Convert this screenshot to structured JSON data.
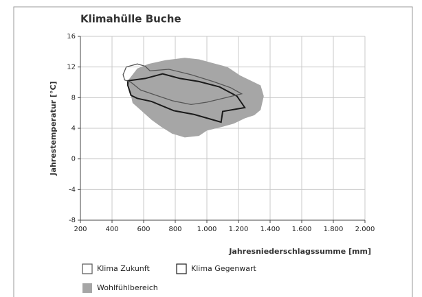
{
  "chart_data": {
    "type": "area",
    "title": "Klimahülle Buche",
    "x_label": "Jahresniederschlagssumme [mm]",
    "y_label": "Jahrestemperatur [°C]",
    "xlim": [
      200,
      2000
    ],
    "ylim": [
      -8,
      16
    ],
    "xticks": [
      200,
      400,
      600,
      800,
      {
        "value": 1000,
        "label": "1.000"
      },
      {
        "value": 1200,
        "label": "1.200"
      },
      {
        "value": 1400,
        "label": "1.400"
      },
      {
        "value": 1600,
        "label": "1.600"
      },
      {
        "value": 1800,
        "label": "1.800"
      },
      {
        "value": 2000,
        "label": "2.000"
      }
    ],
    "yticks": [
      -8,
      -4,
      0,
      4,
      8,
      12,
      16
    ],
    "grid": true,
    "series": [
      {
        "name": "Klima Zukunft",
        "color": "#555555",
        "style": "outline",
        "x": [
          470,
          490,
          560,
          610,
          640,
          760,
          900,
          1040,
          1150,
          1220,
          1120,
          1000,
          900,
          780,
          680,
          580,
          520,
          480
        ],
        "y": [
          11.0,
          12.0,
          12.4,
          12.1,
          11.5,
          11.7,
          11.0,
          10.1,
          9.3,
          8.5,
          8.0,
          7.4,
          7.1,
          7.6,
          8.3,
          9.0,
          10.0,
          10.3
        ]
      },
      {
        "name": "Klima Gegenwart",
        "color": "#1a1a1a",
        "style": "outline",
        "x": [
          500,
          610,
          720,
          830,
          950,
          1080,
          1190,
          1240,
          1100,
          1090,
          920,
          790,
          650,
          560,
          520,
          500
        ],
        "y": [
          10.2,
          10.5,
          11.1,
          10.5,
          10.1,
          9.4,
          8.2,
          6.7,
          6.2,
          4.8,
          5.8,
          6.3,
          7.5,
          7.9,
          8.3,
          9.6
        ]
      },
      {
        "name": "Wohlfühlbereich",
        "color": "#a6a6a6",
        "style": "filled",
        "x": [
          500,
          560,
          630,
          740,
          860,
          950,
          1040,
          1130,
          1210,
          1300,
          1340,
          1360,
          1340,
          1300,
          1240,
          1170,
          1100,
          1000,
          950,
          860,
          780,
          710,
          650,
          580,
          530
        ],
        "y": [
          10.2,
          11.8,
          12.4,
          12.9,
          13.2,
          13.0,
          12.5,
          12.0,
          10.9,
          10.0,
          9.6,
          8.2,
          6.4,
          5.7,
          5.3,
          4.6,
          4.2,
          3.7,
          3.0,
          2.8,
          3.3,
          4.2,
          5.1,
          6.4,
          7.3
        ]
      }
    ]
  }
}
